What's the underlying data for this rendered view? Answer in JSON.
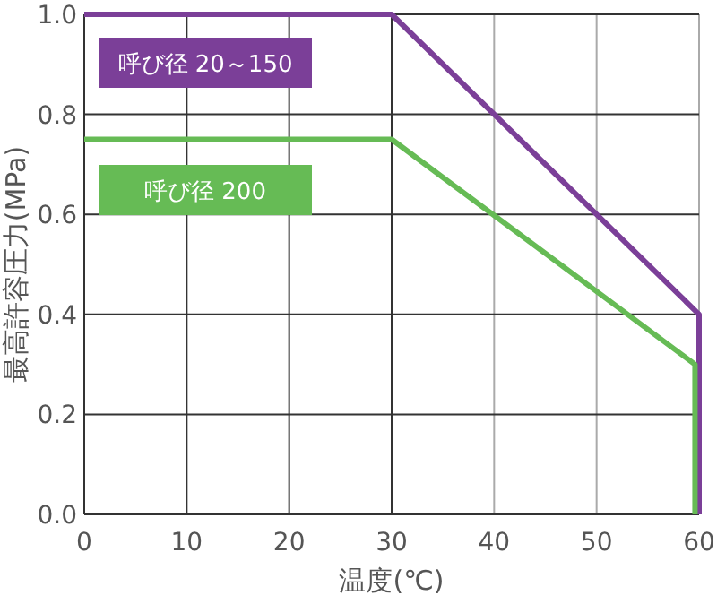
{
  "chart_data": {
    "type": "line",
    "xlabel": "温度(℃)",
    "ylabel": "最高許容圧力(MPa)",
    "xlim": [
      0,
      60
    ],
    "xticks": [
      0,
      10,
      20,
      30,
      40,
      50,
      60
    ],
    "ylim": [
      0,
      1
    ],
    "yticks": [
      {
        "value": 0,
        "label": "0.0"
      },
      {
        "value": 0.2,
        "label": "0.2"
      },
      {
        "value": 0.4,
        "label": "0.4"
      },
      {
        "value": 0.6,
        "label": "0.6"
      },
      {
        "value": 0.8,
        "label": "0.8"
      },
      {
        "value": 1,
        "label": "1.0"
      }
    ],
    "grid": true,
    "legend": "top left",
    "marker": "none",
    "line_style": "solid",
    "series": [
      {
        "name": "呼び径 20～150",
        "color": "#7b3f98",
        "x": [
          0,
          30,
          60,
          60
        ],
        "values": [
          1,
          1,
          0.4,
          0
        ]
      },
      {
        "name": "呼び径 200",
        "color": "#66bb55",
        "x": [
          0,
          30,
          59.6,
          59.6
        ],
        "values": [
          0.75,
          0.75,
          0.3,
          0
        ]
      }
    ]
  }
}
